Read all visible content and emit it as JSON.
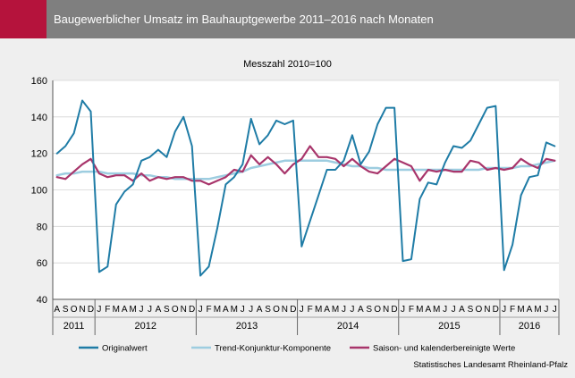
{
  "header": {
    "title": "Baugewerblicher Umsatz im Bauhauptgewerbe 2011–2016 nach Monaten"
  },
  "source": "Statistisches Landesamt Rheinland-Pfalz",
  "colors": {
    "accent": "#b5133c",
    "header": "#7f7f7f",
    "originalwert": "#1f7ca6",
    "trend": "#9dcde0",
    "saison": "#a8356b"
  },
  "chart_data": {
    "type": "line",
    "subtitle": "Messzahl 2010=100",
    "ylim": [
      40,
      160
    ],
    "yticks": [
      40,
      60,
      80,
      100,
      120,
      140,
      160
    ],
    "grid": true,
    "legend_position": "bottom",
    "month_labels": [
      "A",
      "S",
      "O",
      "N",
      "D",
      "J",
      "F",
      "M",
      "A",
      "M",
      "J",
      "J",
      "A",
      "S",
      "O",
      "N",
      "D",
      "J",
      "F",
      "M",
      "A",
      "M",
      "J",
      "J",
      "A",
      "S",
      "O",
      "N",
      "D",
      "J",
      "F",
      "M",
      "A",
      "M",
      "J",
      "J",
      "A",
      "S",
      "O",
      "N",
      "D",
      "J",
      "F",
      "M",
      "A",
      "M",
      "J",
      "J",
      "A",
      "S",
      "O",
      "N",
      "D",
      "J",
      "F",
      "M",
      "A",
      "M",
      "J",
      "J"
    ],
    "years": [
      {
        "label": "2011",
        "start": 0,
        "end": 5
      },
      {
        "label": "2012",
        "start": 5,
        "end": 17
      },
      {
        "label": "2013",
        "start": 17,
        "end": 29
      },
      {
        "label": "2014",
        "start": 29,
        "end": 41
      },
      {
        "label": "2015",
        "start": 41,
        "end": 53
      },
      {
        "label": "2016",
        "start": 53,
        "end": 60
      }
    ],
    "series": [
      {
        "name": "Originalwert",
        "color": "#1f7ca6",
        "values": [
          120,
          124,
          131,
          149,
          143,
          55,
          58,
          92,
          99,
          103,
          116,
          118,
          122,
          118,
          132,
          140,
          124,
          53,
          58,
          79,
          103,
          107,
          114,
          139,
          125,
          130,
          138,
          136,
          138,
          69,
          83,
          97,
          111,
          111,
          116,
          130,
          114,
          121,
          136,
          145,
          145,
          61,
          62,
          95,
          104,
          103,
          115,
          124,
          123,
          127,
          136,
          145,
          146,
          56,
          70,
          97,
          107,
          108,
          126,
          124
        ]
      },
      {
        "name": "Trend-Konjunktur-Komponente",
        "color": "#9dcde0",
        "values": [
          108,
          109,
          109,
          110,
          110,
          110,
          109,
          109,
          109,
          109,
          108,
          108,
          107,
          107,
          106,
          106,
          106,
          106,
          106,
          107,
          108,
          109,
          110,
          112,
          113,
          114,
          115,
          116,
          116,
          116,
          116,
          116,
          116,
          115,
          114,
          113,
          113,
          112,
          112,
          111,
          111,
          111,
          111,
          111,
          111,
          111,
          111,
          111,
          111,
          111,
          111,
          112,
          112,
          112,
          112,
          113,
          113,
          114,
          115,
          116
        ]
      },
      {
        "name": "Saison- und kalenderbereinigte Werte",
        "color": "#a8356b",
        "values": [
          107,
          106,
          110,
          114,
          117,
          109,
          107,
          108,
          108,
          105,
          109,
          105,
          107,
          106,
          107,
          107,
          105,
          105,
          103,
          105,
          107,
          111,
          110,
          119,
          114,
          118,
          114,
          109,
          114,
          117,
          124,
          118,
          118,
          117,
          113,
          117,
          113,
          110,
          109,
          113,
          117,
          115,
          113,
          105,
          111,
          110,
          111,
          110,
          110,
          116,
          115,
          111,
          112,
          111,
          112,
          117,
          114,
          112,
          117,
          116
        ]
      }
    ]
  }
}
